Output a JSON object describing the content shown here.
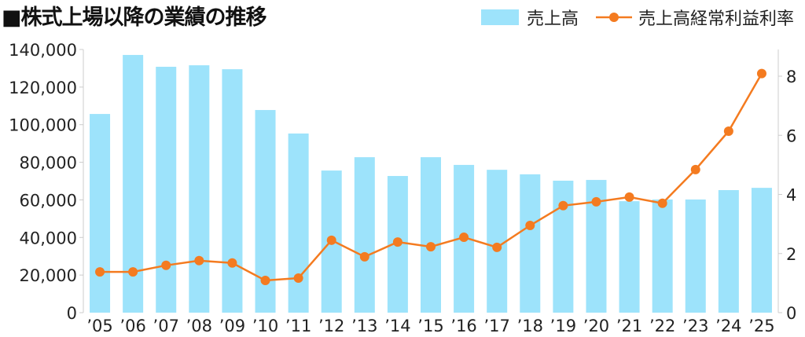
{
  "chart_data": {
    "type": "bar+line",
    "title": "■株式上場以降の業績の推移",
    "categories": [
      "'05",
      "'06",
      "'07",
      "'08",
      "'09",
      "'10",
      "'11",
      "'12",
      "'13",
      "'14",
      "'15",
      "'16",
      "'17",
      "'18",
      "'19",
      "'20",
      "'21",
      "'22",
      "'23",
      "'24",
      "'25"
    ],
    "series": [
      {
        "name": "売上高",
        "type": "bar",
        "axis": "left",
        "color": "#9de3fb",
        "values": [
          105700,
          137100,
          130800,
          131600,
          129500,
          107800,
          95300,
          75600,
          82700,
          72700,
          82700,
          78600,
          76000,
          73600,
          70200,
          70600,
          59300,
          60200,
          60200,
          65200,
          66400
        ]
      },
      {
        "name": "売上高経常利益利率",
        "type": "line",
        "axis": "right",
        "color": "#f47b20",
        "values": [
          1.38,
          1.38,
          1.6,
          1.76,
          1.68,
          1.09,
          1.17,
          2.45,
          1.89,
          2.39,
          2.23,
          2.55,
          2.21,
          2.95,
          3.62,
          3.75,
          3.91,
          3.7,
          4.84,
          6.14,
          8.09
        ]
      }
    ],
    "left_axis": {
      "ylim": [
        0,
        140000
      ],
      "ticks": [
        "0",
        "20,000",
        "40,000",
        "60,000",
        "80,000",
        "100,000",
        "120,000",
        "140,000"
      ]
    },
    "right_axis": {
      "ylim": [
        0,
        8.9
      ],
      "ticks": [
        "0",
        "2",
        "4",
        "6",
        "8"
      ]
    },
    "legend_placement": "top-right",
    "grid": false
  }
}
